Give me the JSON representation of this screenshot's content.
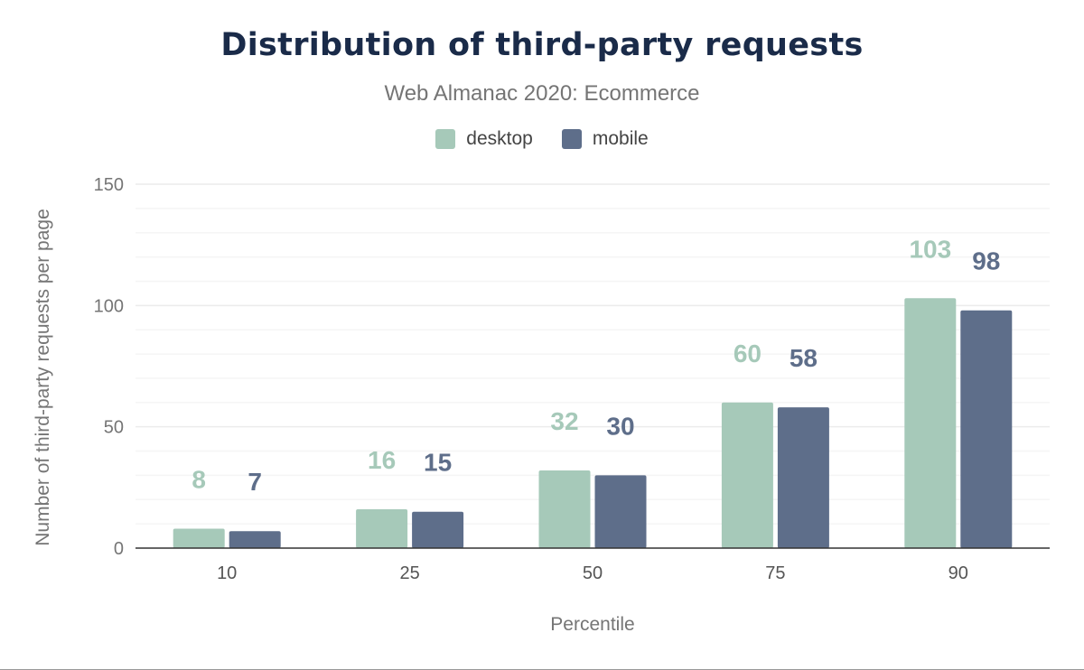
{
  "chart_data": {
    "type": "bar",
    "title": "Distribution of third-party requests",
    "subtitle": "Web Almanac 2020: Ecommerce",
    "xlabel": "Percentile",
    "ylabel": "Number of third-party requests per page",
    "categories": [
      "10",
      "25",
      "50",
      "75",
      "90"
    ],
    "series": [
      {
        "name": "desktop",
        "color": "#a6c9b9",
        "values": [
          8,
          16,
          32,
          60,
          103
        ]
      },
      {
        "name": "mobile",
        "color": "#5e6e8a",
        "values": [
          7,
          15,
          30,
          58,
          98
        ]
      }
    ],
    "ylim": [
      0,
      150
    ],
    "yticks": [
      0,
      50,
      100,
      150
    ],
    "grid": true,
    "minor_grid_step": 10,
    "legend": "top-center",
    "data_labels": true
  }
}
